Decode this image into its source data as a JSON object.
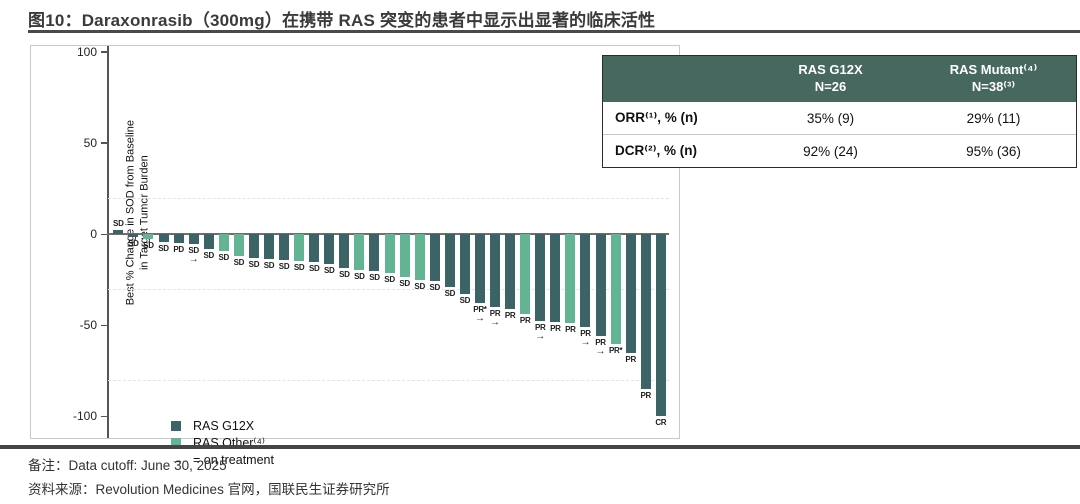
{
  "title": "图10：Daraxonrasib（300mg）在携带 RAS 突变的患者中显示出显著的临床活性",
  "chart_data": {
    "type": "bar",
    "subtype": "waterfall",
    "title": "",
    "xlabel": "",
    "ylabel_line1": "Best % Change in SOD from Baseline",
    "ylabel_line2": "in Target Tumor Burden",
    "ylim": [
      -105,
      100
    ],
    "yticks": [
      100,
      50,
      0,
      -50,
      -100
    ],
    "reference_lines": [
      20,
      -30,
      -80
    ],
    "grid": "dashed-faint",
    "legend_position": "bottom-left-inside",
    "arrow_glyph": "→",
    "colors": {
      "g12x": "#3C6466",
      "other": "#63B493"
    },
    "legend": [
      {
        "swatch": "g12x",
        "label": "RAS G12X"
      },
      {
        "swatch": "other",
        "label": "RAS Other⁽⁴⁾"
      },
      {
        "swatch": "arrow",
        "label": "= on treatment"
      }
    ],
    "bars": [
      {
        "group": "g12x",
        "response": "SD",
        "value": 2,
        "on_treatment": false
      },
      {
        "group": "g12x",
        "response": "SD",
        "value": -1.5,
        "on_treatment": false
      },
      {
        "group": "other",
        "response": "SD",
        "value": -3,
        "on_treatment": false
      },
      {
        "group": "g12x",
        "response": "SD",
        "value": -4.5,
        "on_treatment": false
      },
      {
        "group": "g12x",
        "response": "PD",
        "value": -5,
        "on_treatment": false
      },
      {
        "group": "g12x",
        "response": "SD",
        "value": -5.5,
        "on_treatment": true
      },
      {
        "group": "g12x",
        "response": "SD",
        "value": -8,
        "on_treatment": false
      },
      {
        "group": "other",
        "response": "SD",
        "value": -9.5,
        "on_treatment": false
      },
      {
        "group": "other",
        "response": "SD",
        "value": -12,
        "on_treatment": false
      },
      {
        "group": "g12x",
        "response": "SD",
        "value": -13,
        "on_treatment": false
      },
      {
        "group": "g12x",
        "response": "SD",
        "value": -13.5,
        "on_treatment": false
      },
      {
        "group": "g12x",
        "response": "SD",
        "value": -14.5,
        "on_treatment": false
      },
      {
        "group": "other",
        "response": "SD",
        "value": -15,
        "on_treatment": false
      },
      {
        "group": "g12x",
        "response": "SD",
        "value": -15.5,
        "on_treatment": false
      },
      {
        "group": "g12x",
        "response": "SD",
        "value": -16.5,
        "on_treatment": false
      },
      {
        "group": "g12x",
        "response": "SD",
        "value": -18.5,
        "on_treatment": false
      },
      {
        "group": "other",
        "response": "SD",
        "value": -19.5,
        "on_treatment": false
      },
      {
        "group": "g12x",
        "response": "SD",
        "value": -20.5,
        "on_treatment": false
      },
      {
        "group": "other",
        "response": "SD",
        "value": -21.5,
        "on_treatment": false
      },
      {
        "group": "other",
        "response": "SD",
        "value": -23.5,
        "on_treatment": false
      },
      {
        "group": "other",
        "response": "SD",
        "value": -25,
        "on_treatment": false
      },
      {
        "group": "g12x",
        "response": "SD",
        "value": -26,
        "on_treatment": false
      },
      {
        "group": "g12x",
        "response": "SD",
        "value": -29,
        "on_treatment": false
      },
      {
        "group": "g12x",
        "response": "SD",
        "value": -33,
        "on_treatment": false
      },
      {
        "group": "g12x",
        "response": "PR*",
        "value": -38,
        "on_treatment": true
      },
      {
        "group": "g12x",
        "response": "PR",
        "value": -40,
        "on_treatment": true
      },
      {
        "group": "g12x",
        "response": "PR",
        "value": -41,
        "on_treatment": false
      },
      {
        "group": "other",
        "response": "PR",
        "value": -44,
        "on_treatment": false
      },
      {
        "group": "g12x",
        "response": "PR",
        "value": -47.5,
        "on_treatment": true
      },
      {
        "group": "g12x",
        "response": "PR",
        "value": -48.5,
        "on_treatment": false
      },
      {
        "group": "other",
        "response": "PR",
        "value": -49,
        "on_treatment": false
      },
      {
        "group": "g12x",
        "response": "PR",
        "value": -51,
        "on_treatment": true
      },
      {
        "group": "g12x",
        "response": "PR",
        "value": -56,
        "on_treatment": true
      },
      {
        "group": "other",
        "response": "PR*",
        "value": -60.5,
        "on_treatment": false
      },
      {
        "group": "g12x",
        "response": "PR",
        "value": -65,
        "on_treatment": false
      },
      {
        "group": "g12x",
        "response": "PR",
        "value": -85,
        "on_treatment": false
      },
      {
        "group": "g12x",
        "response": "CR",
        "value": -100,
        "on_treatment": false
      }
    ]
  },
  "table": {
    "columns": [
      {
        "line1": "RAS G12X",
        "line2": "N=26"
      },
      {
        "line1": "RAS Mutant⁽⁴⁾",
        "line2": "N=38⁽³⁾"
      }
    ],
    "rows": [
      {
        "label": "ORR⁽¹⁾, % (n)",
        "values": [
          "35% (9)",
          "29% (11)"
        ]
      },
      {
        "label": "DCR⁽²⁾, % (n)",
        "values": [
          "92% (24)",
          "95% (36)"
        ]
      }
    ]
  },
  "footer": {
    "note": "备注：Data cutoff: June 30, 2025",
    "source": "资料来源：Revolution Medicines 官网，国联民生证券研究所"
  }
}
